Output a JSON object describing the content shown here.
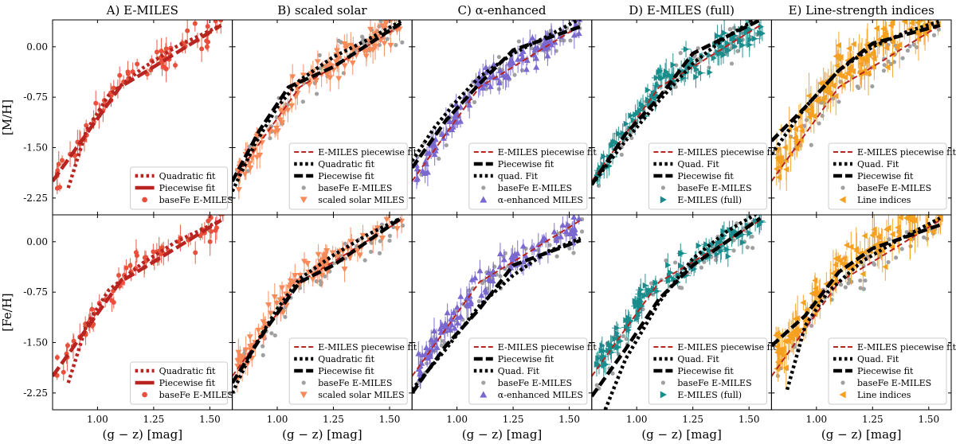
{
  "chart_data": {
    "type": "scatter",
    "layout": "2 rows x 5 columns, shared axes",
    "x_label": "(g − z) [mag]",
    "x_ticks": [
      "1.00",
      "1.25",
      "1.50"
    ],
    "xlim": [
      0.8,
      1.6
    ],
    "rows": [
      {
        "ylabel": "[M/H]",
        "ylim": [
          -2.5,
          0.4
        ],
        "y_ticks": [
          "0.00",
          "-0.75",
          "-1.50",
          "-2.25"
        ]
      },
      {
        "ylabel": "[Fe/H]",
        "ylim": [
          -2.5,
          0.4
        ],
        "y_ticks": [
          "0.00",
          "-0.75",
          "-1.50",
          "-2.25"
        ]
      }
    ],
    "colors": {
      "emiles": "#e8503c",
      "emiles_line": "#b82420",
      "scaled": "#f88a5a",
      "alpha": "#7a68d0",
      "full": "#1a8c8c",
      "lines": "#f6a020",
      "gray": "#a0a0a0",
      "black": "#000000"
    },
    "columns": [
      {
        "title": "A) E-MILES",
        "color_key": "emiles",
        "marker": "circle",
        "legend_rows": [
          {
            "label": "Quadratic fit",
            "type": "dot"
          },
          {
            "label": "Piecewise fit",
            "type": "solid"
          },
          {
            "label": "baseFe E-MILES",
            "type": "marker"
          }
        ],
        "fits": {
          "emiles_piecewise": [
            [
              0.8,
              -2.0
            ],
            [
              0.95,
              -1.3
            ],
            [
              1.1,
              -0.6
            ],
            [
              1.25,
              -0.3
            ],
            [
              1.55,
              0.32
            ]
          ],
          "quadratic": [
            [
              0.87,
              -2.1
            ],
            [
              0.95,
              -1.25
            ],
            [
              1.05,
              -0.72
            ],
            [
              1.2,
              -0.32
            ],
            [
              1.35,
              0.0
            ],
            [
              1.55,
              0.32
            ]
          ]
        }
      },
      {
        "title": "B) scaled solar",
        "color_key": "scaled",
        "marker": "triangle-down",
        "legend_rows": [
          {
            "label": "E-MILES piecewise fit",
            "type": "ref"
          },
          {
            "label": "Quadratic fit",
            "type": "dot"
          },
          {
            "label": "Piecewise fit",
            "type": "solid"
          },
          {
            "label": "baseFe E-MILES",
            "type": "gray"
          },
          {
            "label": "scaled solar MILES",
            "type": "marker"
          }
        ],
        "fits": {
          "piecewise_m": [
            [
              0.8,
              -2.0
            ],
            [
              0.92,
              -1.25
            ],
            [
              1.05,
              -0.6
            ],
            [
              1.25,
              -0.3
            ],
            [
              1.55,
              0.35
            ]
          ],
          "quadratic_m": [
            [
              0.8,
              -2.15
            ],
            [
              0.9,
              -1.45
            ],
            [
              1.0,
              -0.9
            ],
            [
              1.1,
              -0.5
            ],
            [
              1.25,
              -0.15
            ],
            [
              1.4,
              0.1
            ],
            [
              1.55,
              0.38
            ]
          ],
          "piecewise_fe": [
            [
              0.8,
              -2.1
            ],
            [
              0.95,
              -1.3
            ],
            [
              1.1,
              -0.6
            ],
            [
              1.25,
              -0.35
            ],
            [
              1.55,
              0.35
            ]
          ],
          "quadratic_fe": [
            [
              0.8,
              -2.25
            ],
            [
              0.9,
              -1.55
            ],
            [
              1.0,
              -1.0
            ],
            [
              1.1,
              -0.55
            ],
            [
              1.25,
              -0.2
            ],
            [
              1.4,
              0.1
            ],
            [
              1.55,
              0.35
            ]
          ]
        }
      },
      {
        "title": "C) α-enhanced",
        "color_key": "alpha",
        "marker": "triangle-up",
        "legend_rows": [
          {
            "label": "E-MILES piecewise fit",
            "type": "ref"
          },
          {
            "label": "Piecewise fit",
            "type": "solid"
          },
          {
            "label": "quad. Fit",
            "type": "dot"
          },
          {
            "label": "baseFe E-MILES",
            "type": "gray"
          },
          {
            "label": "α-enhanced MILES",
            "type": "marker"
          }
        ],
        "legend_rows_bottom": [
          {
            "label": "E-MILES piecewise fit",
            "type": "ref"
          },
          {
            "label": "Piecewise fit",
            "type": "solid"
          },
          {
            "label": "Quad. Fit",
            "type": "dot"
          },
          {
            "label": "baseFe E-MILES",
            "type": "gray"
          },
          {
            "label": "α-enhanced MILES",
            "type": "marker"
          }
        ],
        "fits": {
          "piecewise_m": [
            [
              0.8,
              -1.8
            ],
            [
              0.95,
              -1.1
            ],
            [
              1.1,
              -0.55
            ],
            [
              1.25,
              -0.05
            ],
            [
              1.55,
              0.3
            ]
          ],
          "quadratic_m": [
            [
              0.8,
              -1.7
            ],
            [
              0.9,
              -1.2
            ],
            [
              1.0,
              -0.8
            ],
            [
              1.1,
              -0.45
            ],
            [
              1.25,
              -0.1
            ],
            [
              1.4,
              0.15
            ],
            [
              1.55,
              0.42
            ]
          ],
          "piecewise_fe": [
            [
              0.8,
              -2.25
            ],
            [
              0.95,
              -1.55
            ],
            [
              1.1,
              -1.0
            ],
            [
              1.25,
              -0.35
            ],
            [
              1.55,
              0.02
            ]
          ],
          "quadratic_fe": [
            [
              0.8,
              -2.2
            ],
            [
              0.95,
              -1.6
            ],
            [
              1.1,
              -0.95
            ],
            [
              1.25,
              -0.5
            ],
            [
              1.4,
              -0.15
            ],
            [
              1.55,
              0.05
            ]
          ]
        }
      },
      {
        "title": "D) E-MILES (full)",
        "color_key": "full",
        "marker": "triangle-right",
        "legend_rows": [
          {
            "label": "E-MILES piecewise fit",
            "type": "ref"
          },
          {
            "label": "Quad. Fit",
            "type": "dot"
          },
          {
            "label": "Piecewise fit",
            "type": "solid"
          },
          {
            "label": "baseFe E-MILES",
            "type": "gray"
          },
          {
            "label": "E-MILES (full)",
            "type": "marker"
          }
        ],
        "fits": {
          "piecewise_m": [
            [
              0.8,
              -2.05
            ],
            [
              0.95,
              -1.3
            ],
            [
              1.1,
              -0.75
            ],
            [
              1.25,
              -0.1
            ],
            [
              1.55,
              0.4
            ]
          ],
          "quadratic_m": [
            [
              0.8,
              -2.05
            ],
            [
              0.95,
              -1.4
            ],
            [
              1.1,
              -0.8
            ],
            [
              1.25,
              -0.25
            ],
            [
              1.4,
              0.15
            ],
            [
              1.55,
              0.45
            ]
          ],
          "piecewise_fe": [
            [
              0.8,
              -2.3
            ],
            [
              0.95,
              -1.6
            ],
            [
              1.1,
              -0.85
            ],
            [
              1.25,
              -0.35
            ],
            [
              1.55,
              0.35
            ]
          ],
          "quadratic_fe": [
            [
              0.86,
              -2.5
            ],
            [
              0.95,
              -1.75
            ],
            [
              1.1,
              -0.9
            ],
            [
              1.25,
              -0.25
            ],
            [
              1.4,
              0.15
            ],
            [
              1.55,
              0.45
            ]
          ]
        }
      },
      {
        "title": "E) Line-strength indices",
        "color_key": "lines",
        "marker": "triangle-left",
        "legend_rows": [
          {
            "label": "E-MILES piecewise fit",
            "type": "ref"
          },
          {
            "label": "Quad. Fit",
            "type": "dot"
          },
          {
            "label": "Piecewise fit",
            "type": "solid"
          },
          {
            "label": "baseFe E-MILES",
            "type": "gray"
          },
          {
            "label": "Line indices",
            "type": "marker"
          }
        ],
        "fits": {
          "piecewise_m": [
            [
              0.8,
              -1.4
            ],
            [
              0.95,
              -0.9
            ],
            [
              1.1,
              -0.35
            ],
            [
              1.25,
              0.05
            ],
            [
              1.55,
              0.32
            ]
          ],
          "quadratic_m": [
            [
              0.8,
              -1.6
            ],
            [
              0.95,
              -0.9
            ],
            [
              1.1,
              -0.35
            ],
            [
              1.25,
              0.0
            ],
            [
              1.4,
              0.22
            ],
            [
              1.55,
              0.38
            ]
          ],
          "piecewise_fe": [
            [
              0.8,
              -1.55
            ],
            [
              0.95,
              -1.1
            ],
            [
              1.1,
              -0.45
            ],
            [
              1.25,
              -0.1
            ],
            [
              1.55,
              0.25
            ]
          ],
          "quadratic_fe": [
            [
              0.87,
              -2.2
            ],
            [
              0.95,
              -1.25
            ],
            [
              1.05,
              -0.75
            ],
            [
              1.2,
              -0.3
            ],
            [
              1.35,
              0.0
            ],
            [
              1.55,
              0.35
            ]
          ]
        }
      }
    ]
  }
}
